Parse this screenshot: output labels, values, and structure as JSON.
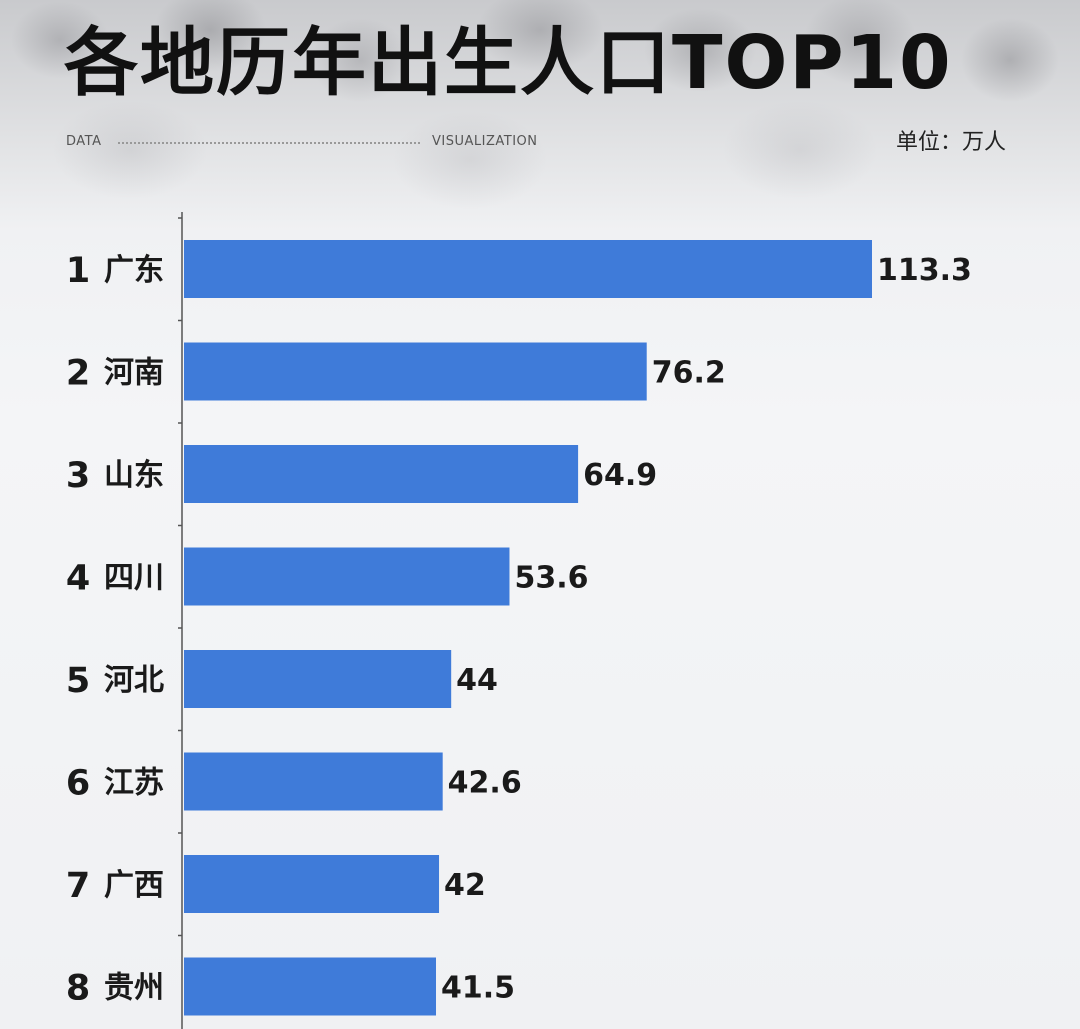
{
  "header": {
    "title": "各地历年出生人口TOP10",
    "label_left": "DATA",
    "label_right": "VISUALIZATION",
    "unit": "单位：万人"
  },
  "chart_data": {
    "type": "bar",
    "orientation": "horizontal",
    "title": "各地历年出生人口TOP10",
    "unit": "单位：万人",
    "ranks": [
      "1",
      "2",
      "3",
      "4",
      "5",
      "6",
      "7",
      "8"
    ],
    "categories": [
      "广东",
      "河南",
      "山东",
      "四川",
      "河北",
      "江苏",
      "广西",
      "贵州"
    ],
    "values": [
      113.3,
      76.2,
      64.9,
      53.6,
      44,
      42.6,
      42,
      41.5
    ],
    "value_labels": [
      "113.3",
      "76.2",
      "64.9",
      "53.6",
      "44",
      "42.6",
      "42",
      "41.5"
    ],
    "bar_color": "#3f7bd9",
    "grid": false,
    "legend": "none"
  }
}
